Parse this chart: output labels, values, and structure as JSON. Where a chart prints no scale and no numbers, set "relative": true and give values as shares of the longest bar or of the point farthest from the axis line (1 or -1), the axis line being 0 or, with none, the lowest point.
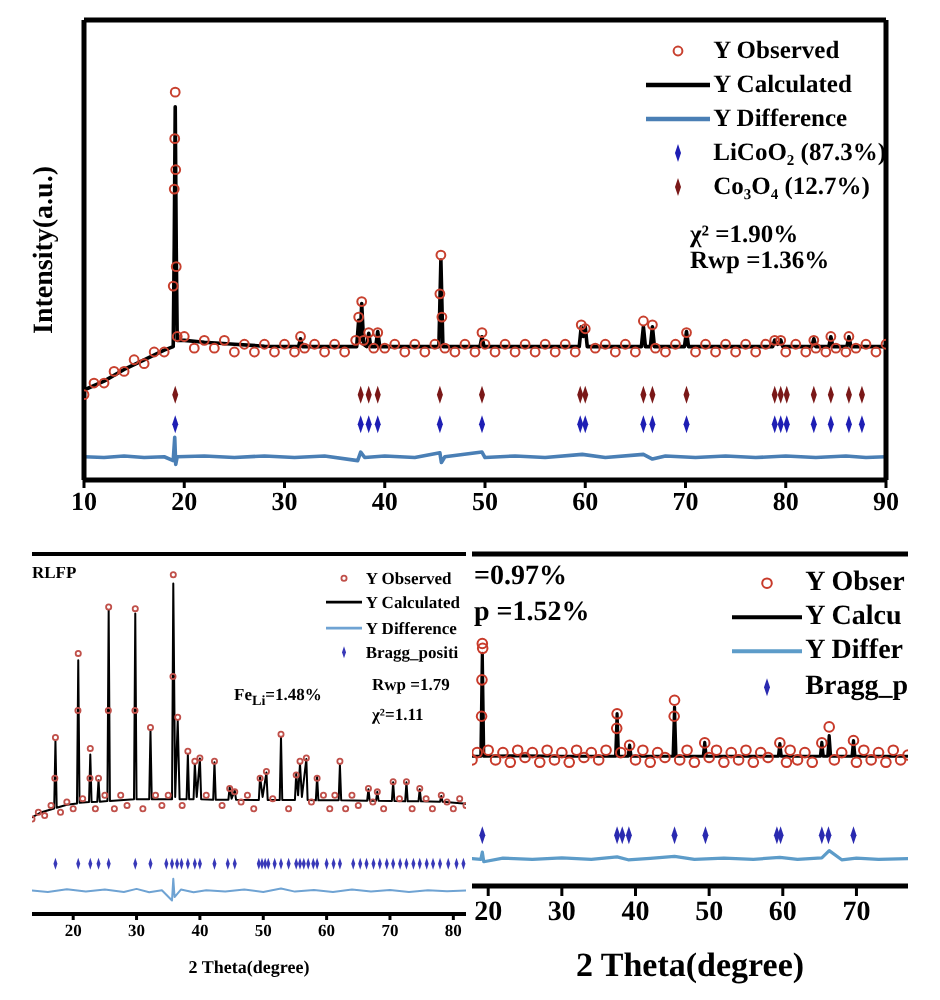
{
  "chart_data": [
    {
      "type": "line",
      "ylabel": "Intensity(a.u.)",
      "xlim": [
        10,
        90
      ],
      "xticks": [
        10,
        20,
        30,
        40,
        50,
        60,
        70,
        80,
        90
      ],
      "relative": true,
      "legend": "top right",
      "annotations": [
        "χ² =1.90%",
        "Rwp =1.36%"
      ],
      "series": [
        {
          "name": "Y Observed",
          "type": "scatter",
          "marker": "circle",
          "color": "#c8402e",
          "x": [
            10,
            11,
            12,
            13,
            14,
            15,
            16,
            17,
            18,
            18.9,
            19.0,
            19.05,
            19.1,
            19.15,
            19.2,
            19.3,
            20,
            21,
            22,
            23,
            24,
            25,
            26,
            27,
            28,
            29,
            30,
            31,
            31.6,
            32,
            33,
            34,
            35,
            36,
            37.1,
            37.4,
            37.7,
            37.9,
            38.4,
            38.9,
            39.3,
            40,
            41,
            42,
            43,
            44,
            45,
            45.5,
            45.6,
            45.7,
            46,
            47,
            48,
            49,
            49.7,
            50,
            51,
            52,
            53,
            54,
            55,
            56,
            57,
            58,
            59,
            59.6,
            60.0,
            61,
            62,
            63,
            64,
            65,
            65.8,
            66.7,
            67,
            68,
            69,
            70.1,
            71,
            72,
            73,
            74,
            75,
            76,
            77,
            78,
            78.9,
            79.5,
            80,
            81,
            82,
            82.8,
            83,
            84,
            84.5,
            85,
            86,
            86.3,
            87,
            88,
            89,
            90
          ],
          "values": [
            0.22,
            0.25,
            0.25,
            0.28,
            0.28,
            0.31,
            0.3,
            0.33,
            0.33,
            0.5,
            0.75,
            0.88,
            1.0,
            0.8,
            0.55,
            0.37,
            0.37,
            0.34,
            0.36,
            0.34,
            0.36,
            0.33,
            0.35,
            0.33,
            0.35,
            0.33,
            0.35,
            0.33,
            0.37,
            0.34,
            0.35,
            0.33,
            0.35,
            0.33,
            0.36,
            0.42,
            0.46,
            0.36,
            0.38,
            0.34,
            0.38,
            0.34,
            0.35,
            0.33,
            0.35,
            0.33,
            0.35,
            0.48,
            0.58,
            0.42,
            0.34,
            0.33,
            0.35,
            0.33,
            0.38,
            0.35,
            0.33,
            0.35,
            0.33,
            0.35,
            0.33,
            0.35,
            0.33,
            0.35,
            0.33,
            0.4,
            0.39,
            0.34,
            0.35,
            0.33,
            0.35,
            0.33,
            0.41,
            0.4,
            0.34,
            0.33,
            0.35,
            0.38,
            0.33,
            0.35,
            0.33,
            0.35,
            0.33,
            0.35,
            0.33,
            0.35,
            0.36,
            0.36,
            0.33,
            0.35,
            0.33,
            0.36,
            0.34,
            0.33,
            0.37,
            0.34,
            0.33,
            0.37,
            0.34,
            0.35,
            0.33,
            0.35
          ]
        },
        {
          "name": "Y Calculated",
          "type": "line",
          "color": "#000000",
          "x": [
            10,
            12,
            14,
            16,
            18,
            18.9,
            19.0,
            19.1,
            19.2,
            19.3,
            20,
            22,
            25,
            28,
            31.4,
            31.6,
            31.8,
            37.2,
            37.4,
            37.55,
            37.7,
            37.9,
            38.2,
            38.4,
            38.6,
            39.1,
            39.3,
            39.5,
            45.4,
            45.6,
            45.8,
            49.5,
            49.7,
            49.9,
            59.4,
            59.6,
            59.8,
            60.0,
            60.2,
            65.6,
            65.8,
            66.0,
            66.5,
            66.7,
            66.9,
            69.9,
            70.1,
            70.3,
            78.7,
            78.9,
            79.2,
            79.5,
            79.7,
            82.6,
            82.8,
            83.0,
            84.3,
            84.5,
            84.7,
            86.1,
            86.3,
            86.5,
            90
          ],
          "values": [
            0.232,
            0.255,
            0.285,
            0.31,
            0.335,
            0.344,
            0.6,
            0.962,
            0.6,
            0.36,
            0.36,
            0.355,
            0.35,
            0.345,
            0.344,
            0.364,
            0.344,
            0.344,
            0.412,
            0.36,
            0.455,
            0.35,
            0.344,
            0.378,
            0.344,
            0.344,
            0.383,
            0.344,
            0.344,
            0.567,
            0.344,
            0.344,
            0.369,
            0.344,
            0.344,
            0.395,
            0.37,
            0.395,
            0.344,
            0.344,
            0.395,
            0.344,
            0.344,
            0.395,
            0.344,
            0.344,
            0.383,
            0.344,
            0.344,
            0.361,
            0.35,
            0.361,
            0.344,
            0.344,
            0.364,
            0.344,
            0.344,
            0.369,
            0.344,
            0.344,
            0.369,
            0.344,
            0.344
          ]
        },
        {
          "name": "Y Difference",
          "type": "line",
          "color": "#4a7fb5",
          "x": [
            10,
            12,
            14,
            16,
            18,
            18.9,
            19.05,
            19.15,
            19.3,
            22,
            25,
            28,
            31,
            34,
            37.3,
            37.6,
            38.0,
            40,
            43,
            45.5,
            45.65,
            46,
            49.7,
            50,
            53,
            56,
            59.7,
            62,
            65.8,
            66.7,
            68,
            71,
            74,
            77,
            80,
            83,
            86,
            88,
            90
          ],
          "values": [
            0.06,
            0.058,
            0.062,
            0.058,
            0.06,
            0.05,
            0.11,
            0.04,
            0.06,
            0.062,
            0.058,
            0.062,
            0.058,
            0.062,
            0.05,
            0.072,
            0.058,
            0.062,
            0.058,
            0.07,
            0.045,
            0.06,
            0.072,
            0.058,
            0.062,
            0.058,
            0.066,
            0.058,
            0.066,
            0.054,
            0.062,
            0.058,
            0.062,
            0.058,
            0.062,
            0.058,
            0.062,
            0.058,
            0.06
          ]
        },
        {
          "name": "LiCoO₂ (87.3%)",
          "type": "scatter",
          "marker": "diamond",
          "color": "#1e1eb4",
          "x": [
            19.1,
            37.6,
            38.4,
            39.3,
            45.5,
            49.7,
            59.5,
            60.0,
            65.8,
            66.7,
            70.1,
            78.9,
            79.5,
            80.1,
            82.8,
            84.5,
            86.3,
            87.6
          ],
          "values": [
            0.144,
            0.144,
            0.144,
            0.144,
            0.144,
            0.144,
            0.144,
            0.144,
            0.144,
            0.144,
            0.144,
            0.144,
            0.144,
            0.144,
            0.144,
            0.144,
            0.144,
            0.144
          ]
        },
        {
          "name": "Co₃O₄ (12.7%)",
          "type": "scatter",
          "marker": "diamond",
          "color": "#7a1818",
          "x": [
            19.1,
            37.6,
            38.4,
            39.3,
            45.5,
            49.7,
            59.5,
            60.0,
            65.8,
            66.7,
            70.1,
            78.9,
            79.5,
            80.1,
            82.8,
            84.5,
            86.3,
            87.6
          ],
          "values": [
            0.22,
            0.22,
            0.22,
            0.22,
            0.22,
            0.22,
            0.22,
            0.22,
            0.22,
            0.22,
            0.22,
            0.22,
            0.22,
            0.22,
            0.22,
            0.22,
            0.22,
            0.22
          ]
        }
      ]
    },
    {
      "type": "line",
      "xlabel": "2 Theta(degree)",
      "xlim": [
        13.5,
        82
      ],
      "xticks": [
        20,
        30,
        40,
        50,
        60,
        70,
        80
      ],
      "relative": true,
      "legend": "top right",
      "annotations": [
        "RLFP",
        "Fe$_{Li}$=1.48%",
        "Rwp =1.79",
        "χ²=1.11"
      ],
      "series": [
        {
          "name": "Y Observed",
          "type": "scatter",
          "marker": "circle",
          "color": "#c0504a",
          "x": [
            13.5,
            14.5,
            15.5,
            16.5,
            17.1,
            17.2,
            18,
            19,
            20,
            20.75,
            20.8,
            21.5,
            22.65,
            22.7,
            23.5,
            24.0,
            25,
            25.55,
            25.6,
            26.5,
            27.5,
            28.5,
            29.75,
            29.8,
            31,
            32.2,
            33,
            34,
            35,
            35.75,
            35.8,
            36.5,
            37.2,
            38.1,
            39.2,
            40.0,
            41,
            42.3,
            43.5,
            44.7,
            45.5,
            46.5,
            47.5,
            48.5,
            49.5,
            50.5,
            51.5,
            52.8,
            54,
            55.2,
            55.8,
            56.8,
            57.6,
            58.5,
            59.5,
            60.5,
            61.3,
            62.1,
            63,
            64,
            65,
            66.6,
            67.3,
            68.0,
            69,
            70.5,
            71.5,
            72.6,
            73.5,
            74.7,
            75.7,
            76.7,
            78.1,
            79,
            80,
            81,
            82
          ],
          "values": [
            0.28,
            0.3,
            0.29,
            0.32,
            0.4,
            0.52,
            0.3,
            0.33,
            0.31,
            0.6,
            0.768,
            0.34,
            0.4,
            0.488,
            0.31,
            0.4,
            0.35,
            0.6,
            0.905,
            0.31,
            0.35,
            0.32,
            0.6,
            0.9,
            0.31,
            0.55,
            0.35,
            0.32,
            0.35,
            0.7,
            1.0,
            0.58,
            0.32,
            0.48,
            0.45,
            0.46,
            0.35,
            0.45,
            0.32,
            0.37,
            0.36,
            0.33,
            0.35,
            0.31,
            0.4,
            0.42,
            0.34,
            0.53,
            0.31,
            0.41,
            0.45,
            0.46,
            0.33,
            0.4,
            0.35,
            0.31,
            0.35,
            0.45,
            0.31,
            0.35,
            0.32,
            0.37,
            0.33,
            0.36,
            0.31,
            0.39,
            0.34,
            0.39,
            0.31,
            0.37,
            0.34,
            0.31,
            0.35,
            0.33,
            0.31,
            0.34,
            0.32
          ]
        },
        {
          "name": "Y Calculated",
          "type": "line",
          "color": "#000000",
          "x": [
            13.5,
            15,
            17.0,
            17.2,
            17.4,
            19,
            20.6,
            20.8,
            21.0,
            22.5,
            22.7,
            22.9,
            23.8,
            24.0,
            24.2,
            25.4,
            25.6,
            25.8,
            29.6,
            29.8,
            30.0,
            32.0,
            32.2,
            32.4,
            35.6,
            35.8,
            36.1,
            36.5,
            36.8,
            37.9,
            38.1,
            38.3,
            39.0,
            39.2,
            39.5,
            40.0,
            40.2,
            42.1,
            42.3,
            42.5,
            44.5,
            44.7,
            45.0,
            45.5,
            45.7,
            49.3,
            49.5,
            49.9,
            50.5,
            50.7,
            52.6,
            52.8,
            53.0,
            55.0,
            55.2,
            55.5,
            55.8,
            56.1,
            56.8,
            57.0,
            58.3,
            58.5,
            58.7,
            61.9,
            62.1,
            62.3,
            66.4,
            66.6,
            66.8,
            67.8,
            68.0,
            68.2,
            70.3,
            70.5,
            70.7,
            72.4,
            72.6,
            72.8,
            74.5,
            74.7,
            74.9,
            77.9,
            78.1,
            78.3,
            82
          ],
          "values": [
            0.285,
            0.3,
            0.311,
            0.51,
            0.313,
            0.322,
            0.326,
            0.748,
            0.328,
            0.33,
            0.47,
            0.33,
            0.331,
            0.394,
            0.331,
            0.333,
            0.896,
            0.333,
            0.338,
            0.886,
            0.338,
            0.338,
            0.54,
            0.338,
            0.338,
            0.974,
            0.345,
            0.57,
            0.338,
            0.338,
            0.47,
            0.338,
            0.338,
            0.443,
            0.345,
            0.458,
            0.338,
            0.337,
            0.447,
            0.337,
            0.337,
            0.374,
            0.34,
            0.364,
            0.337,
            0.336,
            0.404,
            0.345,
            0.417,
            0.336,
            0.336,
            0.522,
            0.336,
            0.336,
            0.413,
            0.35,
            0.443,
            0.345,
            0.457,
            0.336,
            0.335,
            0.404,
            0.335,
            0.335,
            0.439,
            0.335,
            0.334,
            0.368,
            0.334,
            0.334,
            0.36,
            0.334,
            0.333,
            0.388,
            0.333,
            0.332,
            0.388,
            0.332,
            0.332,
            0.368,
            0.332,
            0.331,
            0.348,
            0.331,
            0.325
          ]
        },
        {
          "name": "Y Difference",
          "type": "line",
          "color": "#6fa3d3",
          "x": [
            13.5,
            16,
            19,
            22,
            25,
            28,
            30,
            32,
            34,
            35.6,
            35.8,
            36.0,
            37,
            39,
            41,
            44,
            47,
            50,
            52.8,
            55,
            58,
            61,
            64,
            67,
            70,
            73,
            76,
            79,
            82
          ],
          "values": [
            0.069,
            0.065,
            0.073,
            0.066,
            0.072,
            0.065,
            0.074,
            0.064,
            0.07,
            0.04,
            0.104,
            0.05,
            0.072,
            0.064,
            0.07,
            0.066,
            0.072,
            0.065,
            0.075,
            0.066,
            0.071,
            0.065,
            0.072,
            0.066,
            0.071,
            0.065,
            0.07,
            0.067,
            0.069
          ]
        },
        {
          "name": "Bragg_positi",
          "type": "scatter",
          "marker": "diamond",
          "color": "#3838b8",
          "x": [
            17.2,
            20.8,
            22.7,
            24.0,
            25.6,
            29.8,
            32.2,
            34.7,
            35.6,
            36.4,
            37.1,
            38.1,
            39.2,
            40.0,
            42.3,
            44.4,
            45.5,
            49.3,
            49.8,
            50.3,
            50.8,
            51.8,
            52.8,
            54.0,
            55.2,
            55.8,
            56.4,
            57.1,
            57.9,
            58.5,
            60.0,
            61.1,
            62.1,
            64.2,
            65.3,
            66.3,
            67.4,
            68.4,
            69.5,
            70.5,
            71.6,
            72.6,
            73.7,
            74.7,
            75.8,
            76.8,
            77.9,
            79.2,
            80.5,
            81.6
          ],
          "values": [
            0.148,
            0.148,
            0.148,
            0.148,
            0.148,
            0.148,
            0.148,
            0.148,
            0.148,
            0.148,
            0.148,
            0.148,
            0.148,
            0.148,
            0.148,
            0.148,
            0.148,
            0.148,
            0.148,
            0.148,
            0.148,
            0.148,
            0.148,
            0.148,
            0.148,
            0.148,
            0.148,
            0.148,
            0.148,
            0.148,
            0.148,
            0.148,
            0.148,
            0.148,
            0.148,
            0.148,
            0.148,
            0.148,
            0.148,
            0.148,
            0.148,
            0.148,
            0.148,
            0.148,
            0.148,
            0.148,
            0.148,
            0.148,
            0.148,
            0.148
          ]
        }
      ]
    },
    {
      "type": "line",
      "xlabel": "2 Theta(degree)",
      "xlim": [
        17.8,
        77
      ],
      "xticks": [
        20,
        30,
        40,
        50,
        60,
        70
      ],
      "relative": true,
      "legend": "top right",
      "annotations": [
        "=0.97%",
        "p =1.52%"
      ],
      "series": [
        {
          "name": "Y Obser",
          "type": "scatter",
          "marker": "circle",
          "color": "#c83a2a",
          "x": [
            17.8,
            18.5,
            19.1,
            19.15,
            19.2,
            19.25,
            20,
            21,
            22,
            23,
            24,
            25,
            26,
            27,
            28,
            29,
            30,
            31,
            32,
            33,
            34,
            35,
            36,
            37.45,
            37.5,
            38,
            39.2,
            40,
            41,
            42,
            43,
            44,
            45.25,
            45.3,
            46,
            47,
            48,
            49.4,
            50,
            51,
            52,
            53,
            54,
            55,
            56,
            57,
            58,
            59.6,
            60.5,
            61,
            62,
            63,
            64,
            65.3,
            66.3,
            67,
            68,
            69.6,
            70,
            71,
            72,
            73,
            74,
            75,
            76,
            77
          ],
          "values": [
            0.52,
            0.55,
            0.7,
            0.85,
            1.0,
            0.98,
            0.56,
            0.52,
            0.55,
            0.51,
            0.56,
            0.53,
            0.55,
            0.51,
            0.56,
            0.52,
            0.55,
            0.51,
            0.56,
            0.53,
            0.55,
            0.52,
            0.56,
            0.65,
            0.71,
            0.55,
            0.58,
            0.52,
            0.56,
            0.51,
            0.55,
            0.53,
            0.7,
            0.766,
            0.52,
            0.56,
            0.51,
            0.59,
            0.53,
            0.56,
            0.51,
            0.55,
            0.52,
            0.56,
            0.51,
            0.55,
            0.53,
            0.59,
            0.51,
            0.56,
            0.52,
            0.55,
            0.51,
            0.59,
            0.656,
            0.52,
            0.55,
            0.6,
            0.51,
            0.56,
            0.52,
            0.55,
            0.51,
            0.56,
            0.52,
            0.54
          ]
        },
        {
          "name": "Y Calcu",
          "type": "line",
          "color": "#000000",
          "x": [
            17.8,
            19.0,
            19.2,
            19.4,
            25,
            30,
            37.3,
            37.5,
            37.7,
            39.0,
            39.2,
            39.4,
            45.1,
            45.3,
            45.5,
            49.2,
            49.4,
            49.6,
            55,
            59.4,
            59.6,
            59.8,
            65.1,
            65.3,
            65.5,
            66.1,
            66.3,
            66.5,
            69.4,
            69.6,
            69.8,
            77
          ],
          "values": [
            0.535,
            0.535,
            0.959,
            0.535,
            0.537,
            0.535,
            0.535,
            0.711,
            0.535,
            0.535,
            0.581,
            0.535,
            0.535,
            0.738,
            0.535,
            0.535,
            0.592,
            0.535,
            0.535,
            0.535,
            0.587,
            0.535,
            0.535,
            0.592,
            0.535,
            0.535,
            0.62,
            0.535,
            0.535,
            0.6,
            0.535,
            0.535
          ]
        },
        {
          "name": "Y Differ",
          "type": "line",
          "color": "#5d9cc9",
          "x": [
            17.8,
            19.0,
            19.2,
            19.4,
            22,
            26,
            30,
            34,
            37.5,
            39,
            42,
            45.3,
            48,
            52,
            56,
            59.6,
            62,
            65.3,
            66.3,
            68,
            70,
            73,
            77
          ],
          "values": [
            0.113,
            0.11,
            0.14,
            0.1,
            0.115,
            0.11,
            0.116,
            0.11,
            0.12,
            0.108,
            0.114,
            0.122,
            0.11,
            0.115,
            0.11,
            0.118,
            0.11,
            0.116,
            0.146,
            0.108,
            0.115,
            0.11,
            0.113
          ]
        },
        {
          "name": "Bragg_p",
          "type": "scatter",
          "marker": "diamond",
          "color": "#2a2ab0",
          "x": [
            19.2,
            37.5,
            38.2,
            39.1,
            45.3,
            49.5,
            59.2,
            59.7,
            65.3,
            66.2,
            69.6
          ],
          "values": [
            0.209,
            0.209,
            0.209,
            0.209,
            0.209,
            0.209,
            0.209,
            0.209,
            0.209,
            0.209,
            0.209
          ]
        }
      ]
    }
  ]
}
